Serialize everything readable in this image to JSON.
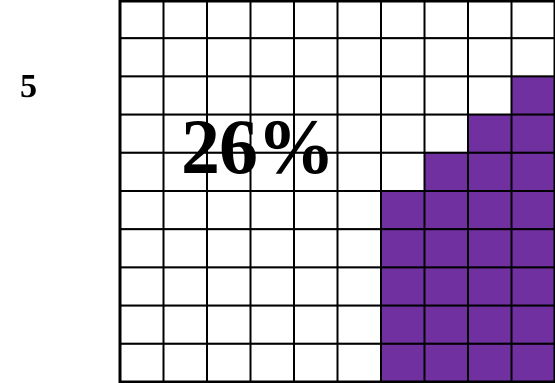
{
  "problem": {
    "number": "5"
  },
  "grid": {
    "rows": 10,
    "columns": 10,
    "shaded_per_column": [
      0,
      0,
      0,
      0,
      0,
      0,
      5,
      6,
      7,
      8
    ],
    "shaded_count": 26,
    "percent_label": "26%",
    "colors": {
      "shaded": "#7030a0",
      "empty": "#ffffff",
      "line": "#000000"
    }
  }
}
